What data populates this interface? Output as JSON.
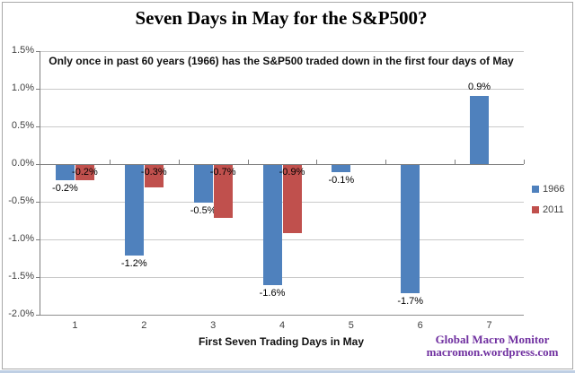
{
  "title": "Seven Days in May for the S&P500?",
  "annotation": "Only once in past 60  years (1966) has the S&P500 traded down in the first four days of May",
  "chart_data": {
    "type": "bar",
    "categories": [
      "1",
      "2",
      "3",
      "4",
      "5",
      "6",
      "7"
    ],
    "series": [
      {
        "name": "1966",
        "color": "#4f81bd",
        "values": [
          -0.2,
          -1.2,
          -0.5,
          -1.6,
          -0.1,
          -1.7,
          0.9
        ]
      },
      {
        "name": "2011",
        "color": "#c0504d",
        "values": [
          -0.2,
          -0.3,
          -0.7,
          -0.9,
          null,
          null,
          null
        ]
      }
    ],
    "data_labels": {
      "1966": [
        "-0.2%",
        "-1.2%",
        "-0.5%",
        "-1.6%",
        "-0.1%",
        "-1.7%",
        "0.9%"
      ],
      "2011": [
        "-0.2%",
        "-0.3%",
        "-0.7%",
        "-0.9%",
        "",
        "",
        ""
      ]
    },
    "xlabel": "First Seven Trading Days in May",
    "ylabel": "",
    "ylim": [
      -2.0,
      1.5
    ],
    "ytick_step": 0.5,
    "ytick_labels": [
      "1.5%",
      "1.0%",
      "0.5%",
      "0.0%",
      "-0.5%",
      "-1.0%",
      "-1.5%",
      "-2.0%"
    ],
    "grid": true,
    "legend_position": "right"
  },
  "footer": {
    "line1": "Global Macro Monitor",
    "line2": "macromon.wordpress.com"
  },
  "colors": {
    "series_1966": "#4f81bd",
    "series_2011": "#c0504d",
    "watermark_purple": "#7030a0",
    "gridline": "#c9c9c9",
    "axis": "#7f7f7f",
    "background": "#ffffff"
  }
}
